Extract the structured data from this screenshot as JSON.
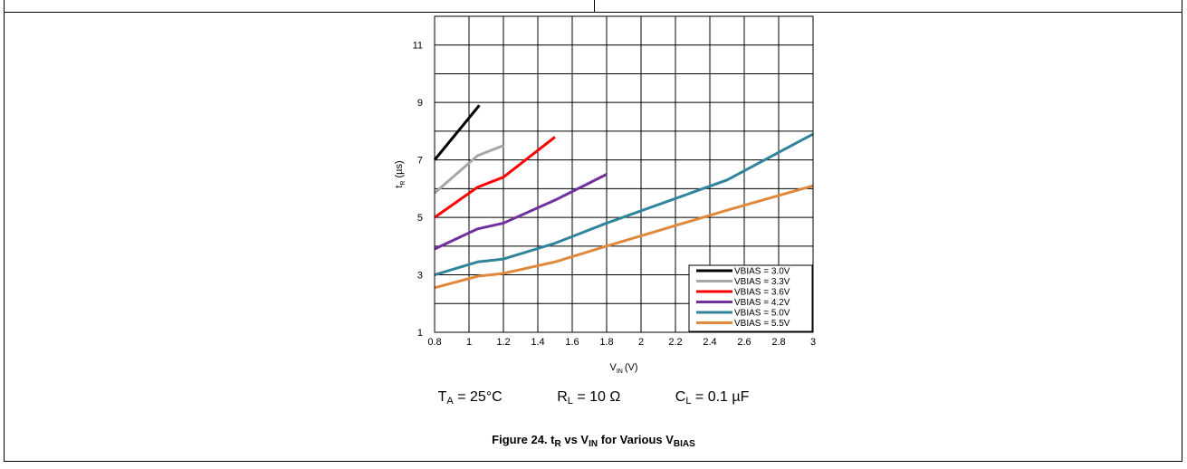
{
  "chart_data": {
    "type": "line",
    "xlabel": {
      "main": "V",
      "sub": "IN",
      "unit": "(V)"
    },
    "ylabel": {
      "main": "t",
      "sub": "R",
      "unit": "(µs)"
    },
    "xlim": [
      0.8,
      3.0
    ],
    "ylim": [
      1,
      12
    ],
    "x_ticks": [
      "0.8",
      "1",
      "1.2",
      "1.4",
      "1.6",
      "1.8",
      "2",
      "2.2",
      "2.4",
      "2.6",
      "2.8",
      "3"
    ],
    "x_tick_values": [
      0.8,
      1.0,
      1.2,
      1.4,
      1.6,
      1.8,
      2.0,
      2.2,
      2.4,
      2.6,
      2.8,
      3.0
    ],
    "y_ticks": [
      "1",
      "3",
      "5",
      "7",
      "9",
      "11"
    ],
    "y_tick_values": [
      1,
      3,
      5,
      7,
      9,
      11
    ],
    "grid": true,
    "legend_position": "bottom-right",
    "series": [
      {
        "name": "VBIAS = 3.0V",
        "color": "#000000",
        "x": [
          0.8,
          1.06
        ],
        "y": [
          7.0,
          8.9
        ]
      },
      {
        "name": "VBIAS = 3.3V",
        "color": "#a6a6a6",
        "x": [
          0.8,
          1.05,
          1.2
        ],
        "y": [
          5.85,
          7.15,
          7.5
        ]
      },
      {
        "name": "VBIAS = 3.6V",
        "color": "#ff0000",
        "x": [
          0.8,
          1.05,
          1.2,
          1.5
        ],
        "y": [
          5.0,
          6.05,
          6.4,
          7.8
        ]
      },
      {
        "name": "VBIAS = 4.2V",
        "color": "#7030a0",
        "x": [
          0.8,
          1.05,
          1.2,
          1.5,
          1.8
        ],
        "y": [
          3.9,
          4.6,
          4.8,
          5.6,
          6.5
        ]
      },
      {
        "name": "VBIAS = 5.0V",
        "color": "#31849b",
        "x": [
          0.8,
          1.05,
          1.2,
          1.5,
          1.8,
          2.5,
          3.0
        ],
        "y": [
          3.0,
          3.45,
          3.55,
          4.1,
          4.8,
          6.3,
          7.9
        ]
      },
      {
        "name": "VBIAS = 5.5V",
        "color": "#e0893c",
        "x": [
          0.8,
          1.05,
          1.2,
          1.5,
          1.8,
          2.5,
          3.0
        ],
        "y": [
          2.55,
          2.95,
          3.05,
          3.45,
          4.0,
          5.25,
          6.1
        ]
      }
    ]
  },
  "conditions": [
    {
      "main": "T",
      "sub": "A",
      "rest": " = 25°C"
    },
    {
      "main": "R",
      "sub": "L",
      "rest": " = 10 Ω"
    },
    {
      "main": "C",
      "sub": "L",
      "rest": " = 0.1 µF"
    }
  ],
  "caption": {
    "prefix": "Figure 24. t",
    "sub1": "R",
    "mid": " vs V",
    "sub2": "IN",
    "mid2": " for Various V",
    "sub3": "BIAS"
  }
}
